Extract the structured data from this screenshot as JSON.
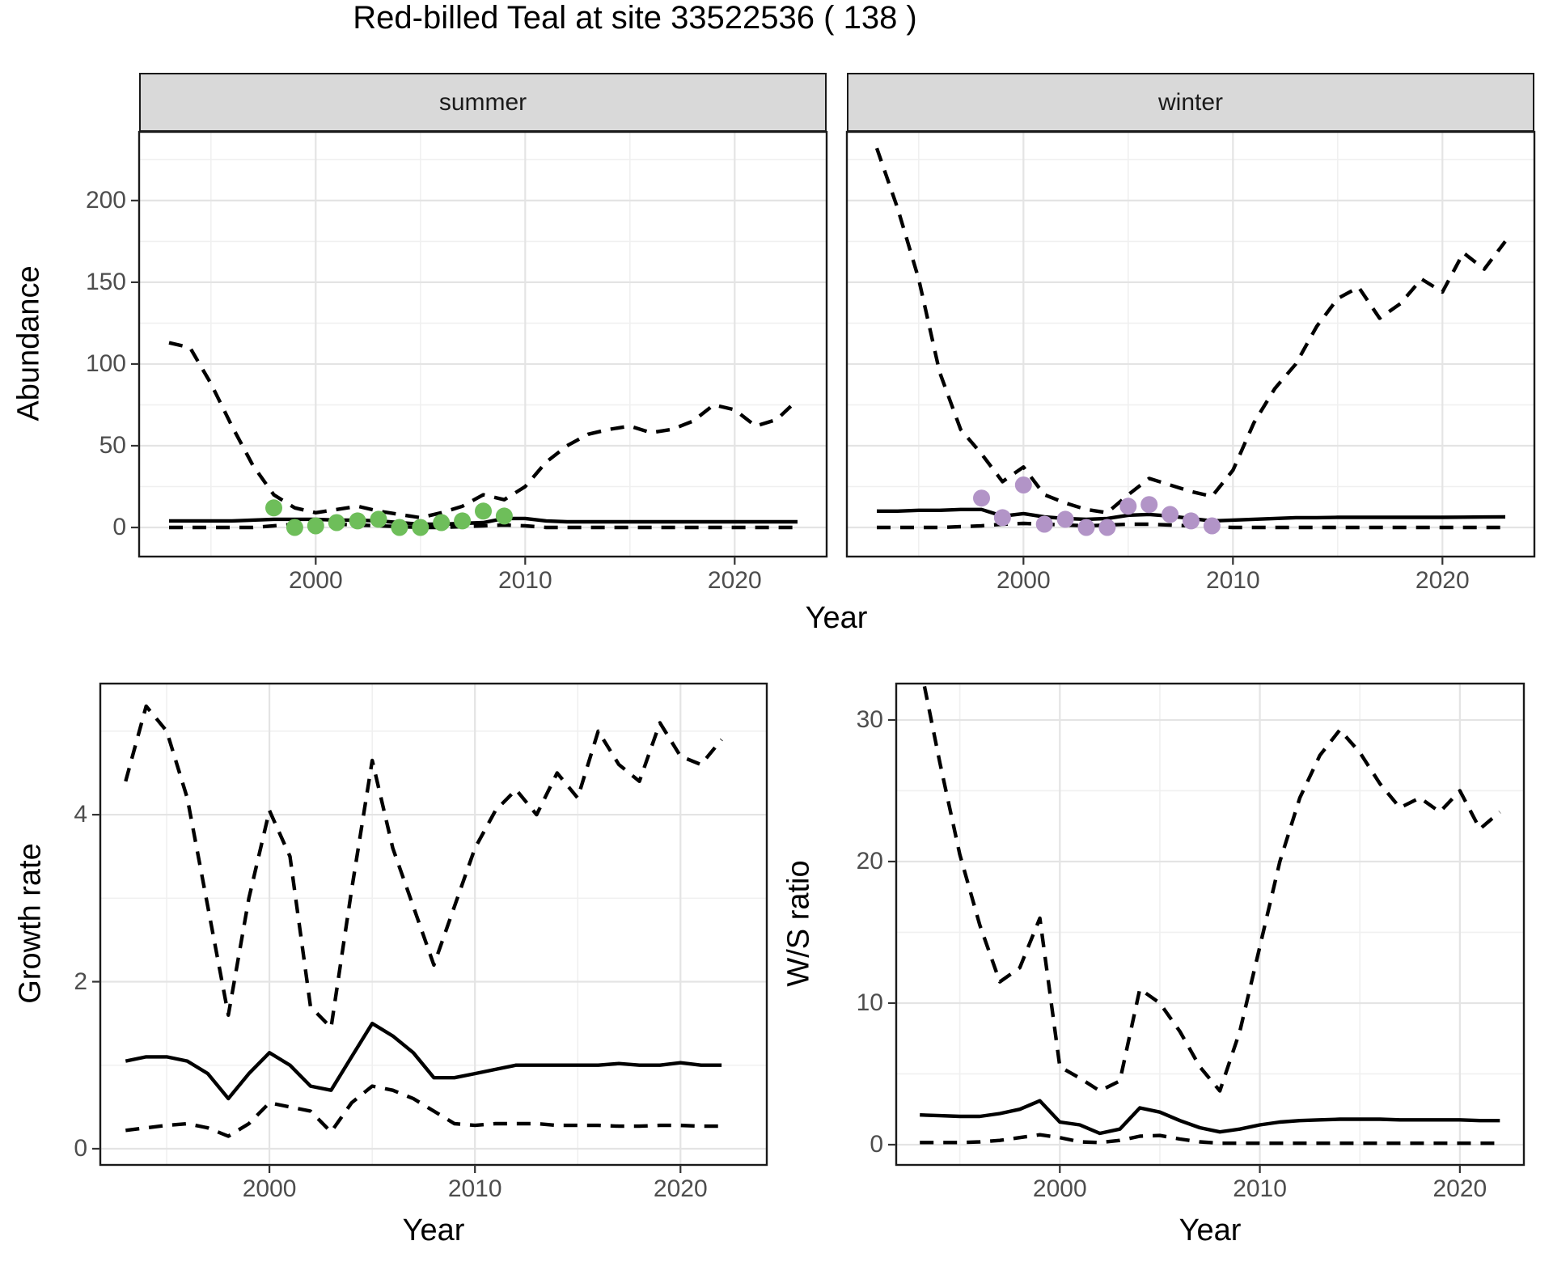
{
  "title": "Red-billed Teal at site 33522536 ( 138 )",
  "colors": {
    "summer_point": "#6EBE5A",
    "winter_point": "#B294C7",
    "line": "#000000",
    "grid_major": "#E4E4E4",
    "grid_minor": "#F0F0F0",
    "strip_bg": "#D9D9D9",
    "panel_border": "#1A1A1A",
    "tick_label": "#4D4D4D"
  },
  "chart_data": [
    {
      "id": "abundance-summer",
      "type": "line",
      "facet_label": "summer",
      "ylabel": "Abundance",
      "xlabel": "Year",
      "x": [
        1993,
        1994,
        1995,
        1996,
        1997,
        1998,
        1999,
        2000,
        2001,
        2002,
        2003,
        2004,
        2005,
        2006,
        2007,
        2008,
        2009,
        2010,
        2011,
        2012,
        2013,
        2014,
        2015,
        2016,
        2017,
        2018,
        2019,
        2020,
        2021,
        2022,
        2023
      ],
      "series": [
        {
          "name": "upper-ci",
          "style": "dashed",
          "values": [
            113,
            110,
            88,
            62,
            38,
            20,
            12,
            9,
            11,
            13,
            10,
            8,
            6,
            9,
            13,
            20,
            17,
            25,
            40,
            50,
            57,
            60,
            62,
            58,
            60,
            65,
            75,
            72,
            62,
            66,
            78
          ]
        },
        {
          "name": "median",
          "style": "solid",
          "values": [
            4,
            4,
            4,
            4,
            4.5,
            5,
            5,
            5,
            4.5,
            4.5,
            4,
            3,
            2,
            2,
            2.5,
            3,
            5.5,
            5.5,
            4,
            3.5,
            3.5,
            3.5,
            3.5,
            3.5,
            3.5,
            3.5,
            3.5,
            3.5,
            3.5,
            3.5,
            3.5
          ]
        },
        {
          "name": "lower-ci",
          "style": "dashed",
          "values": [
            0,
            0,
            0,
            0,
            0,
            1,
            2,
            2,
            2,
            1.5,
            1,
            0.5,
            0,
            0,
            0.5,
            1,
            1.5,
            1,
            0,
            0,
            0,
            0,
            0,
            0,
            0,
            0,
            0,
            0,
            0,
            0,
            0
          ]
        }
      ],
      "points": {
        "name": "observed-count",
        "color": "#6EBE5A",
        "x": [
          1998,
          1999,
          2000,
          2001,
          2002,
          2003,
          2004,
          2005,
          2006,
          2007,
          2008,
          2009
        ],
        "values": [
          12,
          0,
          1,
          3,
          4,
          5,
          0,
          0,
          3,
          4,
          10,
          7
        ]
      },
      "xlim": [
        1991.57,
        2024.39
      ],
      "ylim": [
        -17.8,
        242
      ],
      "y_ticks": [
        0,
        50,
        100,
        150,
        200
      ],
      "y_minor": [
        25,
        75,
        125,
        175,
        225
      ],
      "x_ticks": [
        2000,
        2010,
        2020
      ],
      "x_minor": [
        1995,
        2005,
        2015
      ],
      "show_y_labels": true
    },
    {
      "id": "abundance-winter",
      "type": "line",
      "facet_label": "winter",
      "ylabel": "Abundance",
      "xlabel": "Year",
      "x": [
        1993,
        1994,
        1995,
        1996,
        1997,
        1998,
        1999,
        2000,
        2001,
        2002,
        2003,
        2004,
        2005,
        2006,
        2007,
        2008,
        2009,
        2010,
        2011,
        2012,
        2013,
        2014,
        2015,
        2016,
        2017,
        2018,
        2019,
        2020,
        2021,
        2022,
        2023
      ],
      "series": [
        {
          "name": "upper-ci",
          "style": "dashed",
          "values": [
            232,
            195,
            152,
            95,
            60,
            45,
            28,
            37,
            20,
            15,
            11,
            9,
            20,
            30,
            26,
            22,
            19,
            35,
            64,
            85,
            100,
            123,
            140,
            147,
            128,
            137,
            152,
            144,
            168,
            158,
            175
          ]
        },
        {
          "name": "median",
          "style": "solid",
          "values": [
            10,
            10,
            10.5,
            10.5,
            11,
            11,
            7,
            8.5,
            6.5,
            5.5,
            5,
            5.5,
            7.5,
            8,
            7,
            5.5,
            4,
            4.5,
            5,
            5.5,
            6,
            6,
            6.2,
            6.2,
            6.2,
            6.2,
            6.2,
            6.2,
            6.3,
            6.4,
            6.5
          ]
        },
        {
          "name": "lower-ci",
          "style": "dashed",
          "values": [
            0,
            0,
            0,
            0,
            0.5,
            1,
            2,
            2.5,
            2,
            1.5,
            1,
            1.5,
            2,
            2,
            1.5,
            1,
            0.5,
            0,
            0,
            0,
            0,
            0,
            0,
            0,
            0,
            0,
            0,
            0,
            0,
            0,
            0
          ]
        }
      ],
      "points": {
        "name": "observed-count",
        "color": "#B294C7",
        "x": [
          1998,
          1999,
          2000,
          2001,
          2002,
          2003,
          2004,
          2005,
          2006,
          2007,
          2008,
          2009
        ],
        "values": [
          18,
          6,
          26,
          2,
          5,
          0,
          0,
          13,
          14,
          8,
          4,
          1
        ]
      },
      "xlim": [
        1991.57,
        2024.39
      ],
      "ylim": [
        -17.8,
        242
      ],
      "y_ticks": [
        0,
        50,
        100,
        150,
        200
      ],
      "y_minor": [
        25,
        75,
        125,
        175,
        225
      ],
      "x_ticks": [
        2000,
        2010,
        2020
      ],
      "x_minor": [
        1995,
        2005,
        2015
      ],
      "show_y_labels": false
    },
    {
      "id": "growth-rate",
      "type": "line",
      "facet_label": "",
      "ylabel": "Growth rate",
      "xlabel": "Year",
      "x": [
        1993,
        1994,
        1995,
        1996,
        1997,
        1998,
        1999,
        2000,
        2001,
        2002,
        2003,
        2004,
        2005,
        2006,
        2007,
        2008,
        2009,
        2010,
        2011,
        2012,
        2013,
        2014,
        2015,
        2016,
        2017,
        2018,
        2019,
        2020,
        2021,
        2022
      ],
      "series": [
        {
          "name": "upper-ci",
          "style": "dashed",
          "values": [
            4.4,
            5.3,
            5.0,
            4.2,
            2.9,
            1.6,
            3.0,
            4.05,
            3.5,
            1.7,
            1.45,
            3.1,
            4.65,
            3.6,
            2.9,
            2.2,
            2.9,
            3.6,
            4.05,
            4.3,
            4.0,
            4.5,
            4.2,
            5.0,
            4.6,
            4.4,
            5.1,
            4.7,
            4.6,
            4.9
          ]
        },
        {
          "name": "median",
          "style": "solid",
          "values": [
            1.05,
            1.1,
            1.1,
            1.05,
            0.9,
            0.6,
            0.9,
            1.15,
            1.0,
            0.75,
            0.7,
            1.1,
            1.5,
            1.35,
            1.15,
            0.85,
            0.85,
            0.9,
            0.95,
            1.0,
            1.0,
            1.0,
            1.0,
            1.0,
            1.02,
            1.0,
            1.0,
            1.03,
            1.0,
            1.0
          ]
        },
        {
          "name": "lower-ci",
          "style": "dashed",
          "values": [
            0.22,
            0.25,
            0.28,
            0.3,
            0.25,
            0.15,
            0.3,
            0.55,
            0.5,
            0.45,
            0.2,
            0.55,
            0.75,
            0.7,
            0.6,
            0.45,
            0.3,
            0.28,
            0.3,
            0.3,
            0.3,
            0.28,
            0.28,
            0.28,
            0.27,
            0.27,
            0.28,
            0.28,
            0.27,
            0.27
          ]
        }
      ],
      "points": null,
      "xlim": [
        1991.77,
        2024.2
      ],
      "ylim": [
        -0.194,
        5.57
      ],
      "y_ticks": [
        0,
        2,
        4
      ],
      "y_minor": [
        1,
        3,
        5
      ],
      "x_ticks": [
        2000,
        2010,
        2020
      ],
      "x_minor": [
        1995,
        2005,
        2015
      ],
      "show_y_labels": true
    },
    {
      "id": "ws-ratio",
      "type": "line",
      "facet_label": "",
      "ylabel": "W/S ratio",
      "xlabel": "Year",
      "x": [
        1993,
        1994,
        1995,
        1996,
        1997,
        1998,
        1999,
        2000,
        2001,
        2002,
        2003,
        2004,
        2005,
        2006,
        2007,
        2008,
        2009,
        2010,
        2011,
        2012,
        2013,
        2014,
        2015,
        2016,
        2017,
        2018,
        2019,
        2020,
        2021,
        2022
      ],
      "series": [
        {
          "name": "upper-ci",
          "style": "dashed",
          "values": [
            34,
            27,
            20.5,
            15.5,
            11.5,
            12.5,
            16,
            5.5,
            4.7,
            3.8,
            4.5,
            11,
            10,
            8,
            5.5,
            3.8,
            8,
            14,
            20,
            24.5,
            27.5,
            29.3,
            27.7,
            25.5,
            23.8,
            24.5,
            23.5,
            25,
            22.3,
            23.5
          ]
        },
        {
          "name": "median",
          "style": "solid",
          "values": [
            2.1,
            2.05,
            2.0,
            2.0,
            2.2,
            2.5,
            3.1,
            1.6,
            1.4,
            0.8,
            1.1,
            2.6,
            2.3,
            1.7,
            1.2,
            0.9,
            1.1,
            1.4,
            1.6,
            1.7,
            1.75,
            1.8,
            1.8,
            1.8,
            1.75,
            1.75,
            1.75,
            1.75,
            1.7,
            1.7
          ]
        },
        {
          "name": "lower-ci",
          "style": "dashed",
          "values": [
            0.15,
            0.15,
            0.15,
            0.2,
            0.3,
            0.5,
            0.7,
            0.5,
            0.2,
            0.15,
            0.3,
            0.6,
            0.65,
            0.4,
            0.2,
            0.1,
            0.1,
            0.1,
            0.1,
            0.1,
            0.1,
            0.1,
            0.1,
            0.1,
            0.1,
            0.1,
            0.1,
            0.1,
            0.1,
            0.1
          ]
        }
      ],
      "points": null,
      "xlim": [
        1991.82,
        2023.2
      ],
      "ylim": [
        -1.43,
        32.57
      ],
      "y_ticks": [
        0,
        10,
        20,
        30
      ],
      "y_minor": [
        5,
        15,
        25
      ],
      "x_ticks": [
        2000,
        2010,
        2020
      ],
      "x_minor": [
        1995,
        2005,
        2015
      ],
      "show_y_labels": true
    }
  ]
}
